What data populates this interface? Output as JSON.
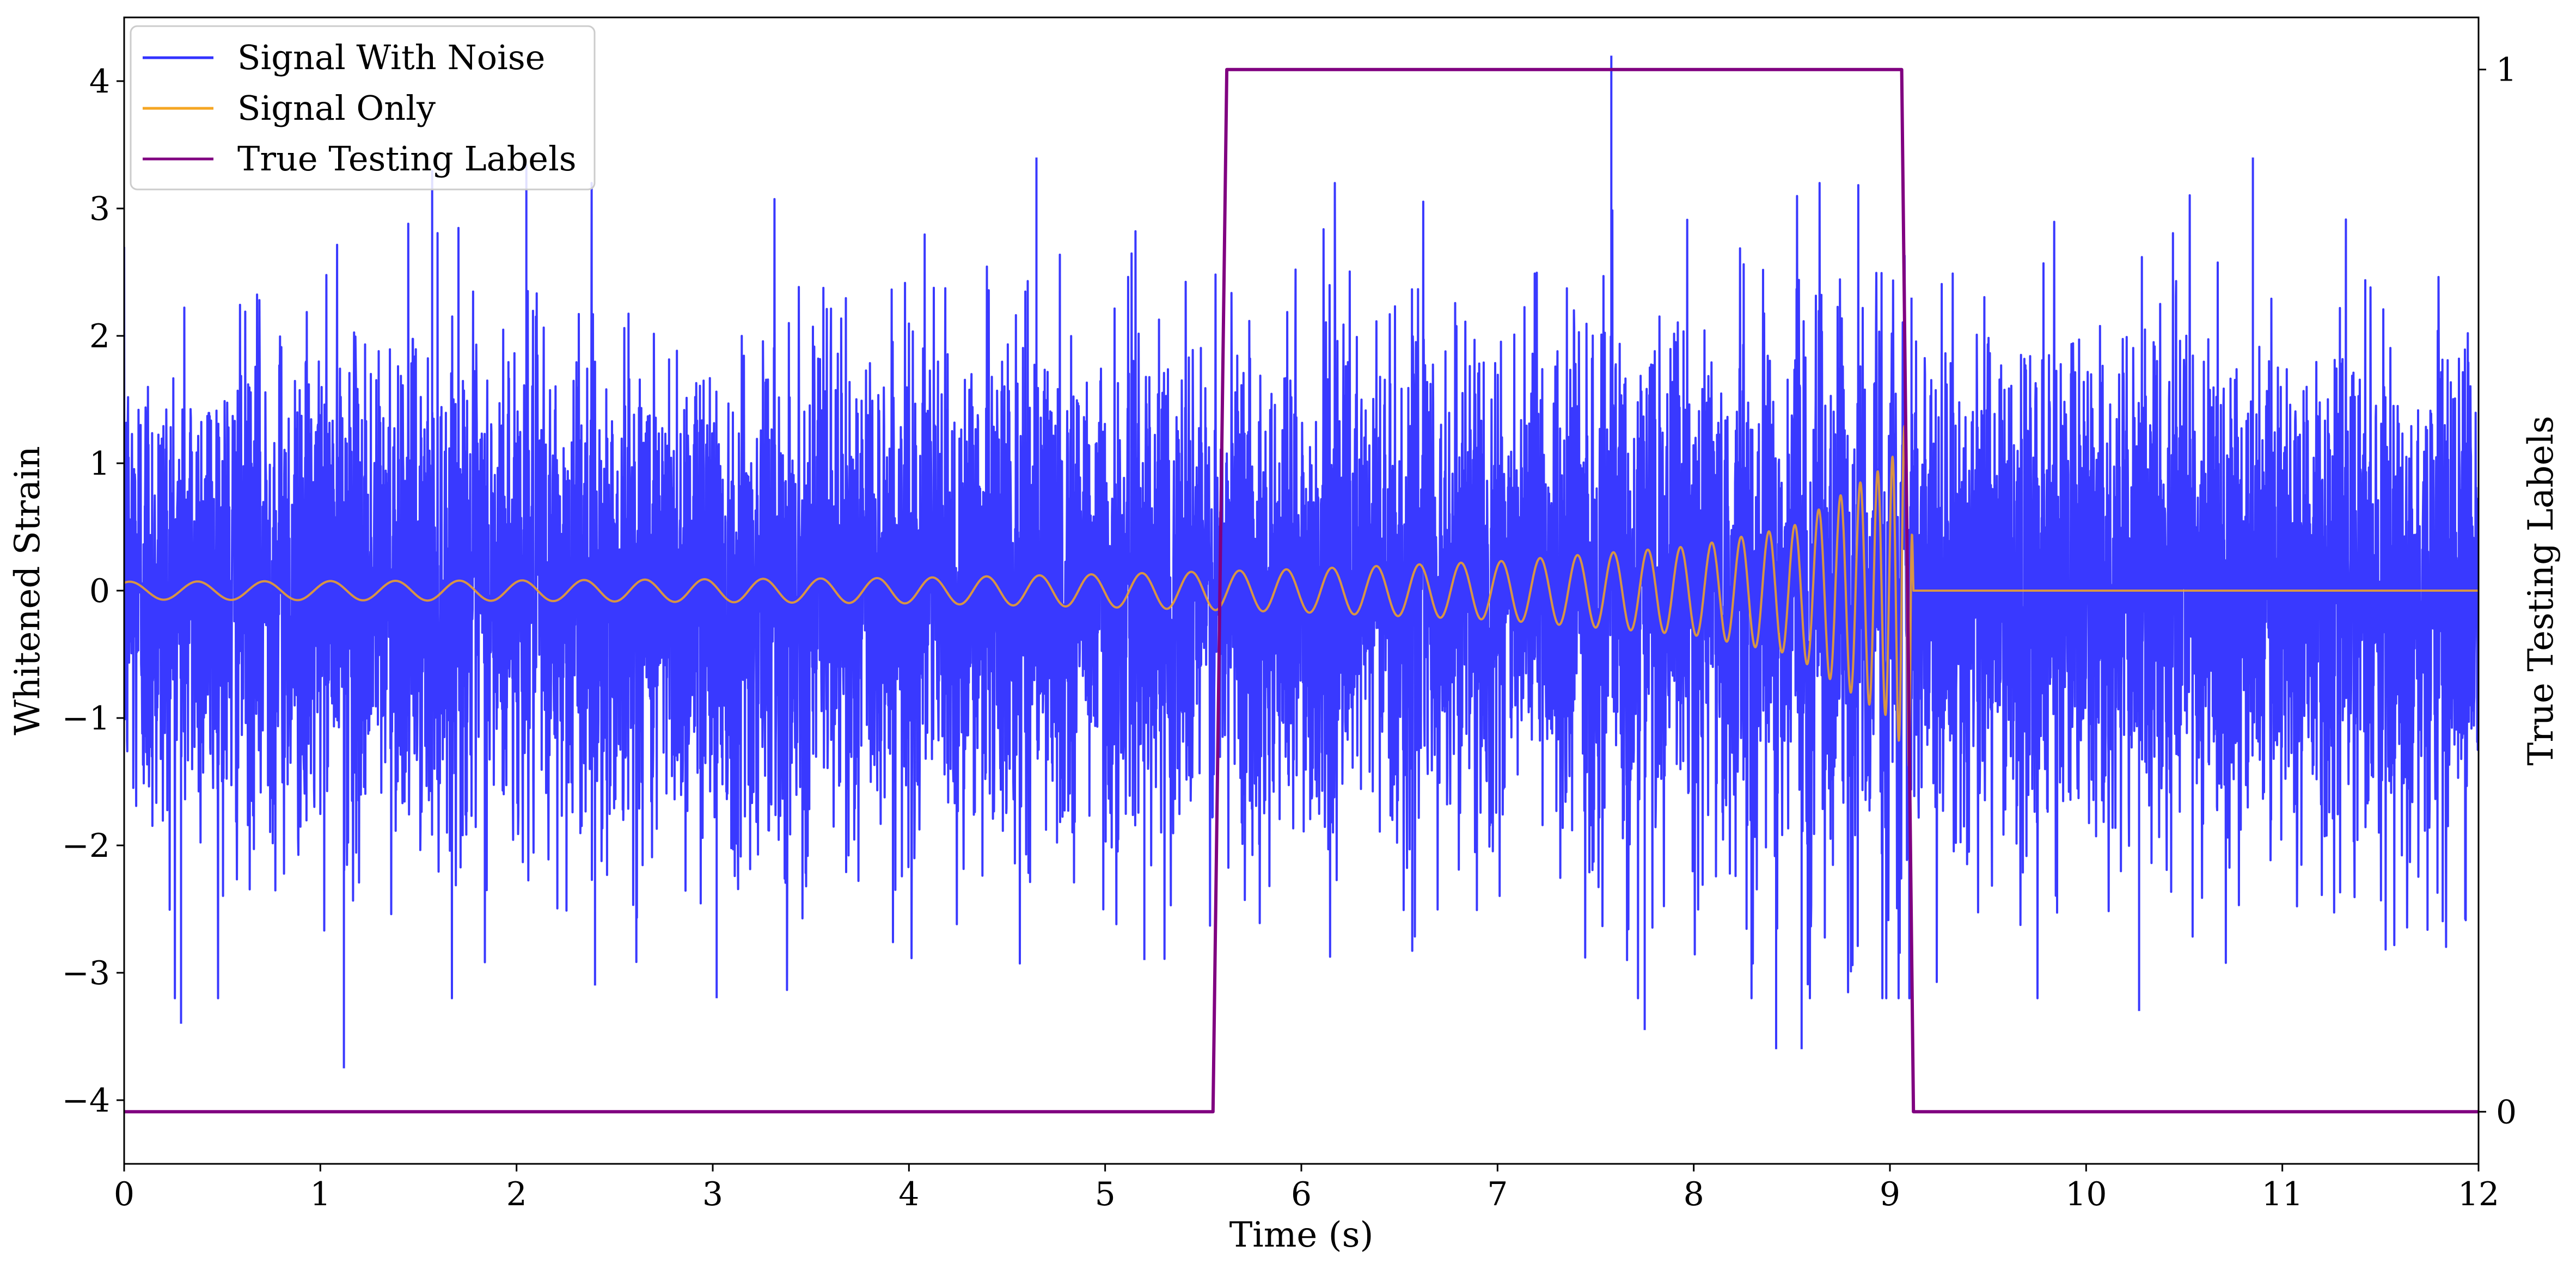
{
  "chart_data": {
    "type": "line",
    "title": "",
    "xlabel": "Time (s)",
    "ylabel_left": "Whitened Strain",
    "ylabel_right": "True Testing Labels",
    "xlim": [
      0,
      12
    ],
    "ylim_left": [
      -4.5,
      4.5
    ],
    "ylim_right": [
      -0.05,
      1.05
    ],
    "x_ticks": [
      "0",
      "1",
      "2",
      "3",
      "4",
      "5",
      "6",
      "7",
      "8",
      "9",
      "10",
      "11",
      "12"
    ],
    "y_left_ticks": [
      "−4",
      "−3",
      "−2",
      "−1",
      "0",
      "1",
      "2",
      "3",
      "4"
    ],
    "y_right_ticks": [
      "0",
      "1"
    ],
    "grid": false,
    "legend_position": "upper-left",
    "series": [
      {
        "name": "Signal With Noise",
        "color": "#3333ff",
        "axis": "left",
        "description_kind": "noisy strain, roughly within ±2.5 with spikes",
        "x": [
          0.0,
          0.29,
          1.12,
          1.57,
          2.05,
          2.4,
          3.02,
          4.65,
          5.2,
          7.58,
          7.75,
          8.42,
          8.55,
          9.05,
          9.11,
          10.27,
          10.85,
          12.0
        ],
        "y": [
          0.0,
          -3.4,
          -3.75,
          3.3,
          3.35,
          -3.1,
          -3.2,
          3.4,
          -2.9,
          4.2,
          -3.45,
          -3.6,
          -3.6,
          -2.85,
          2.3,
          -3.3,
          3.4,
          0.0
        ]
      },
      {
        "name": "Signal Only",
        "color": "#f5a623",
        "axis": "left",
        "form": "chirp",
        "x": [
          0,
          1,
          2,
          3,
          4,
          5,
          6,
          7,
          8,
          8.5,
          9.0,
          9.1,
          9.12,
          12.0
        ],
        "amplitude": [
          0.07,
          0.075,
          0.08,
          0.09,
          0.1,
          0.13,
          0.17,
          0.23,
          0.35,
          0.5,
          1.0,
          1.4,
          0.0,
          0.0
        ]
      },
      {
        "name": "True Testing Labels",
        "color": "#800080",
        "axis": "right",
        "x": [
          0,
          5.55,
          5.62,
          9.06,
          9.12,
          12
        ],
        "y": [
          0,
          0,
          1,
          1,
          0,
          0
        ]
      }
    ]
  }
}
